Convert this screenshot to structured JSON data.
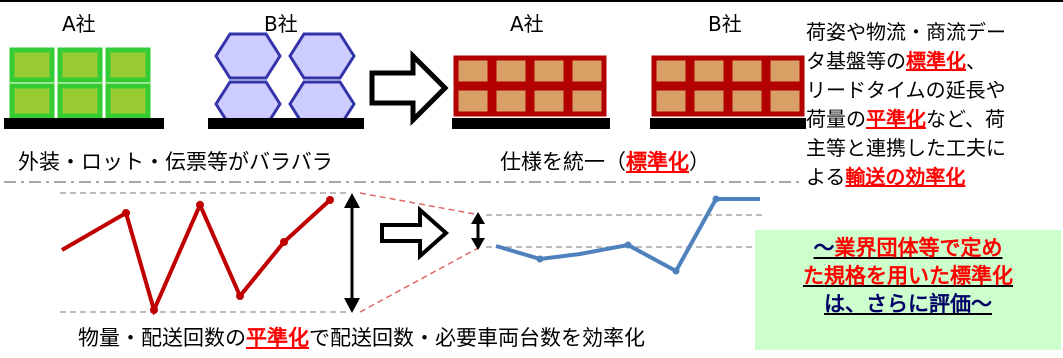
{
  "top": {
    "company_a_left": "A社",
    "company_b_left": "B社",
    "company_a_right": "A社",
    "company_b_right": "B社",
    "caption_left": "外装・ロット・伝票等がバラバラ",
    "caption_right_prefix": "仕様を統一（",
    "caption_right_emph": "標準化",
    "caption_right_suffix": "）"
  },
  "side_note": {
    "l1": "荷姿や物流・商流デー",
    "l2a": "タ基盤等の",
    "l2b": "標準化",
    "l2c": "、",
    "l3": "リードタイムの延長や",
    "l4a": "荷量の",
    "l4b": "平準化",
    "l4c": "など、荷",
    "l5": "主等と連携した工夫に",
    "l6a": "よる",
    "l6b": "輸送の効率化"
  },
  "bottom": {
    "caption_prefix": "物量・配送回数の",
    "caption_emph": "平準化",
    "caption_suffix": "で配送回数・必要車両台数を効率化"
  },
  "highlight_box": {
    "l1a": "～",
    "l1b": "業界団体等で定め",
    "l2": "た規格を用いた標準化",
    "l3": "は、さらに評価～"
  },
  "colors": {
    "green_fill": "#99cc33",
    "green_border": "#33cc33",
    "hex_fill": "#ccccff",
    "hex_border": "#3333aa",
    "box_fill": "#d9a066",
    "box_border": "#b30000",
    "red_line": "#c00000",
    "blue_line": "#4f81bd",
    "emphasis": "#ff0000",
    "box_bg": "#ccffcc"
  }
}
